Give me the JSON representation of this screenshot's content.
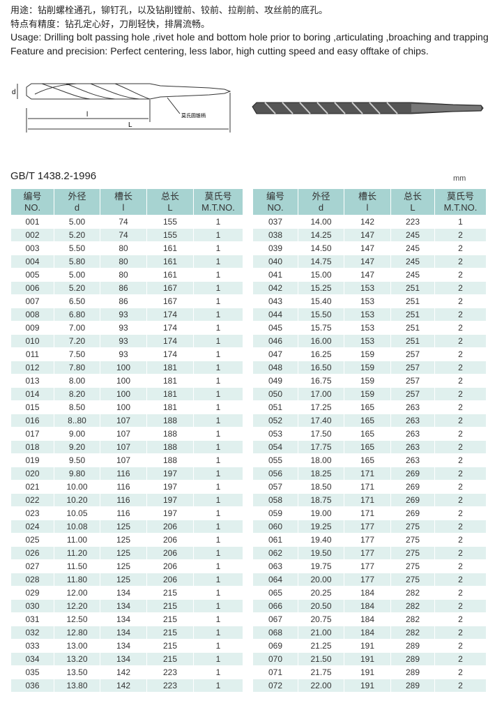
{
  "intro": [
    "用途：钻削螺栓通孔，铆钉孔，以及钻削镗前、铰前、拉削前、攻丝前的底孔。",
    "特点有精度：钻孔定心好，刀削轻快，排屑流畅。",
    "Usage: Drilling bolt passing hole ,rivet hole and bottom hole prior to boring ,articulating ,broaching and trapping.",
    "Feature and precision: Perfect centering, less labor, high cutting speed and easy  offtake  of chips."
  ],
  "diagram": {
    "labels": [
      "d",
      "l",
      "L",
      "莫氏圆锥柄"
    ]
  },
  "standard": "GB/T 1438.2-1996",
  "unit": "mm",
  "tables": [
    {
      "header": [
        [
          "编号",
          "NO."
        ],
        [
          "外径",
          "d"
        ],
        [
          "槽长",
          "l"
        ],
        [
          "总长",
          "L"
        ],
        [
          "莫氏号",
          "M.T.NO."
        ]
      ],
      "rows": [
        [
          "001",
          "5.00",
          "74",
          "155",
          "1"
        ],
        [
          "002",
          "5.20",
          "74",
          "155",
          "1"
        ],
        [
          "003",
          "5.50",
          "80",
          "161",
          "1"
        ],
        [
          "004",
          "5.80",
          "80",
          "161",
          "1"
        ],
        [
          "005",
          "5.00",
          "80",
          "161",
          "1"
        ],
        [
          "006",
          "5.20",
          "86",
          "167",
          "1"
        ],
        [
          "007",
          "6.50",
          "86",
          "167",
          "1"
        ],
        [
          "008",
          "6.80",
          "93",
          "174",
          "1"
        ],
        [
          "009",
          "7.00",
          "93",
          "174",
          "1"
        ],
        [
          "010",
          "7.20",
          "93",
          "174",
          "1"
        ],
        [
          "011",
          "7.50",
          "93",
          "174",
          "1"
        ],
        [
          "012",
          "7.80",
          "100",
          "181",
          "1"
        ],
        [
          "013",
          "8.00",
          "100",
          "181",
          "1"
        ],
        [
          "014",
          "8.20",
          "100",
          "181",
          "1"
        ],
        [
          "015",
          "8.50",
          "100",
          "181",
          "1"
        ],
        [
          "016",
          "8..80",
          "107",
          "188",
          "1"
        ],
        [
          "017",
          "9.00",
          "107",
          "188",
          "1"
        ],
        [
          "018",
          "9.20",
          "107",
          "188",
          "1"
        ],
        [
          "019",
          "9.50",
          "107",
          "188",
          "1"
        ],
        [
          "020",
          "9.80",
          "116",
          "197",
          "1"
        ],
        [
          "021",
          "10.00",
          "116",
          "197",
          "1"
        ],
        [
          "022",
          "10.20",
          "116",
          "197",
          "1"
        ],
        [
          "023",
          "10.05",
          "116",
          "197",
          "1"
        ],
        [
          "024",
          "10.08",
          "125",
          "206",
          "1"
        ],
        [
          "025",
          "11.00",
          "125",
          "206",
          "1"
        ],
        [
          "026",
          "11.20",
          "125",
          "206",
          "1"
        ],
        [
          "027",
          "11.50",
          "125",
          "206",
          "1"
        ],
        [
          "028",
          "11.80",
          "125",
          "206",
          "1"
        ],
        [
          "029",
          "12.00",
          "134",
          "215",
          "1"
        ],
        [
          "030",
          "12.20",
          "134",
          "215",
          "1"
        ],
        [
          "031",
          "12.50",
          "134",
          "215",
          "1"
        ],
        [
          "032",
          "12.80",
          "134",
          "215",
          "1"
        ],
        [
          "033",
          "13.00",
          "134",
          "215",
          "1"
        ],
        [
          "034",
          "13.20",
          "134",
          "215",
          "1"
        ],
        [
          "035",
          "13.50",
          "142",
          "223",
          "1"
        ],
        [
          "036",
          "13.80",
          "142",
          "223",
          "1"
        ]
      ]
    },
    {
      "header": [
        [
          "编号",
          "NO."
        ],
        [
          "外径",
          "d"
        ],
        [
          "槽长",
          "l"
        ],
        [
          "总长",
          "L"
        ],
        [
          "莫氏号",
          "M.T.NO."
        ]
      ],
      "rows": [
        [
          "037",
          "14.00",
          "142",
          "223",
          "1"
        ],
        [
          "038",
          "14.25",
          "147",
          "245",
          "2"
        ],
        [
          "039",
          "14.50",
          "147",
          "245",
          "2"
        ],
        [
          "040",
          "14.75",
          "147",
          "245",
          "2"
        ],
        [
          "041",
          "15.00",
          "147",
          "245",
          "2"
        ],
        [
          "042",
          "15.25",
          "153",
          "251",
          "2"
        ],
        [
          "043",
          "15.40",
          "153",
          "251",
          "2"
        ],
        [
          "044",
          "15.50",
          "153",
          "251",
          "2"
        ],
        [
          "045",
          "15.75",
          "153",
          "251",
          "2"
        ],
        [
          "046",
          "16.00",
          "153",
          "251",
          "2"
        ],
        [
          "047",
          "16.25",
          "159",
          "257",
          "2"
        ],
        [
          "048",
          "16.50",
          "159",
          "257",
          "2"
        ],
        [
          "049",
          "16.75",
          "159",
          "257",
          "2"
        ],
        [
          "050",
          "17.00",
          "159",
          "257",
          "2"
        ],
        [
          "051",
          "17.25",
          "165",
          "263",
          "2"
        ],
        [
          "052",
          "17.40",
          "165",
          "263",
          "2"
        ],
        [
          "053",
          "17.50",
          "165",
          "263",
          "2"
        ],
        [
          "054",
          "17.75",
          "165",
          "263",
          "2"
        ],
        [
          "055",
          "18.00",
          "165",
          "263",
          "2"
        ],
        [
          "056",
          "18.25",
          "171",
          "269",
          "2"
        ],
        [
          "057",
          "18.50",
          "171",
          "269",
          "2"
        ],
        [
          "058",
          "18.75",
          "171",
          "269",
          "2"
        ],
        [
          "059",
          "19.00",
          "171",
          "269",
          "2"
        ],
        [
          "060",
          "19.25",
          "177",
          "275",
          "2"
        ],
        [
          "061",
          "19.40",
          "177",
          "275",
          "2"
        ],
        [
          "062",
          "19.50",
          "177",
          "275",
          "2"
        ],
        [
          "063",
          "19.75",
          "177",
          "275",
          "2"
        ],
        [
          "064",
          "20.00",
          "177",
          "275",
          "2"
        ],
        [
          "065",
          "20.25",
          "184",
          "282",
          "2"
        ],
        [
          "066",
          "20.50",
          "184",
          "282",
          "2"
        ],
        [
          "067",
          "20.75",
          "184",
          "282",
          "2"
        ],
        [
          "068",
          "21.00",
          "184",
          "282",
          "2"
        ],
        [
          "069",
          "21.25",
          "191",
          "289",
          "2"
        ],
        [
          "070",
          "21.50",
          "191",
          "289",
          "2"
        ],
        [
          "071",
          "21.75",
          "191",
          "289",
          "2"
        ],
        [
          "072",
          "22.00",
          "191",
          "289",
          "2"
        ]
      ]
    }
  ]
}
